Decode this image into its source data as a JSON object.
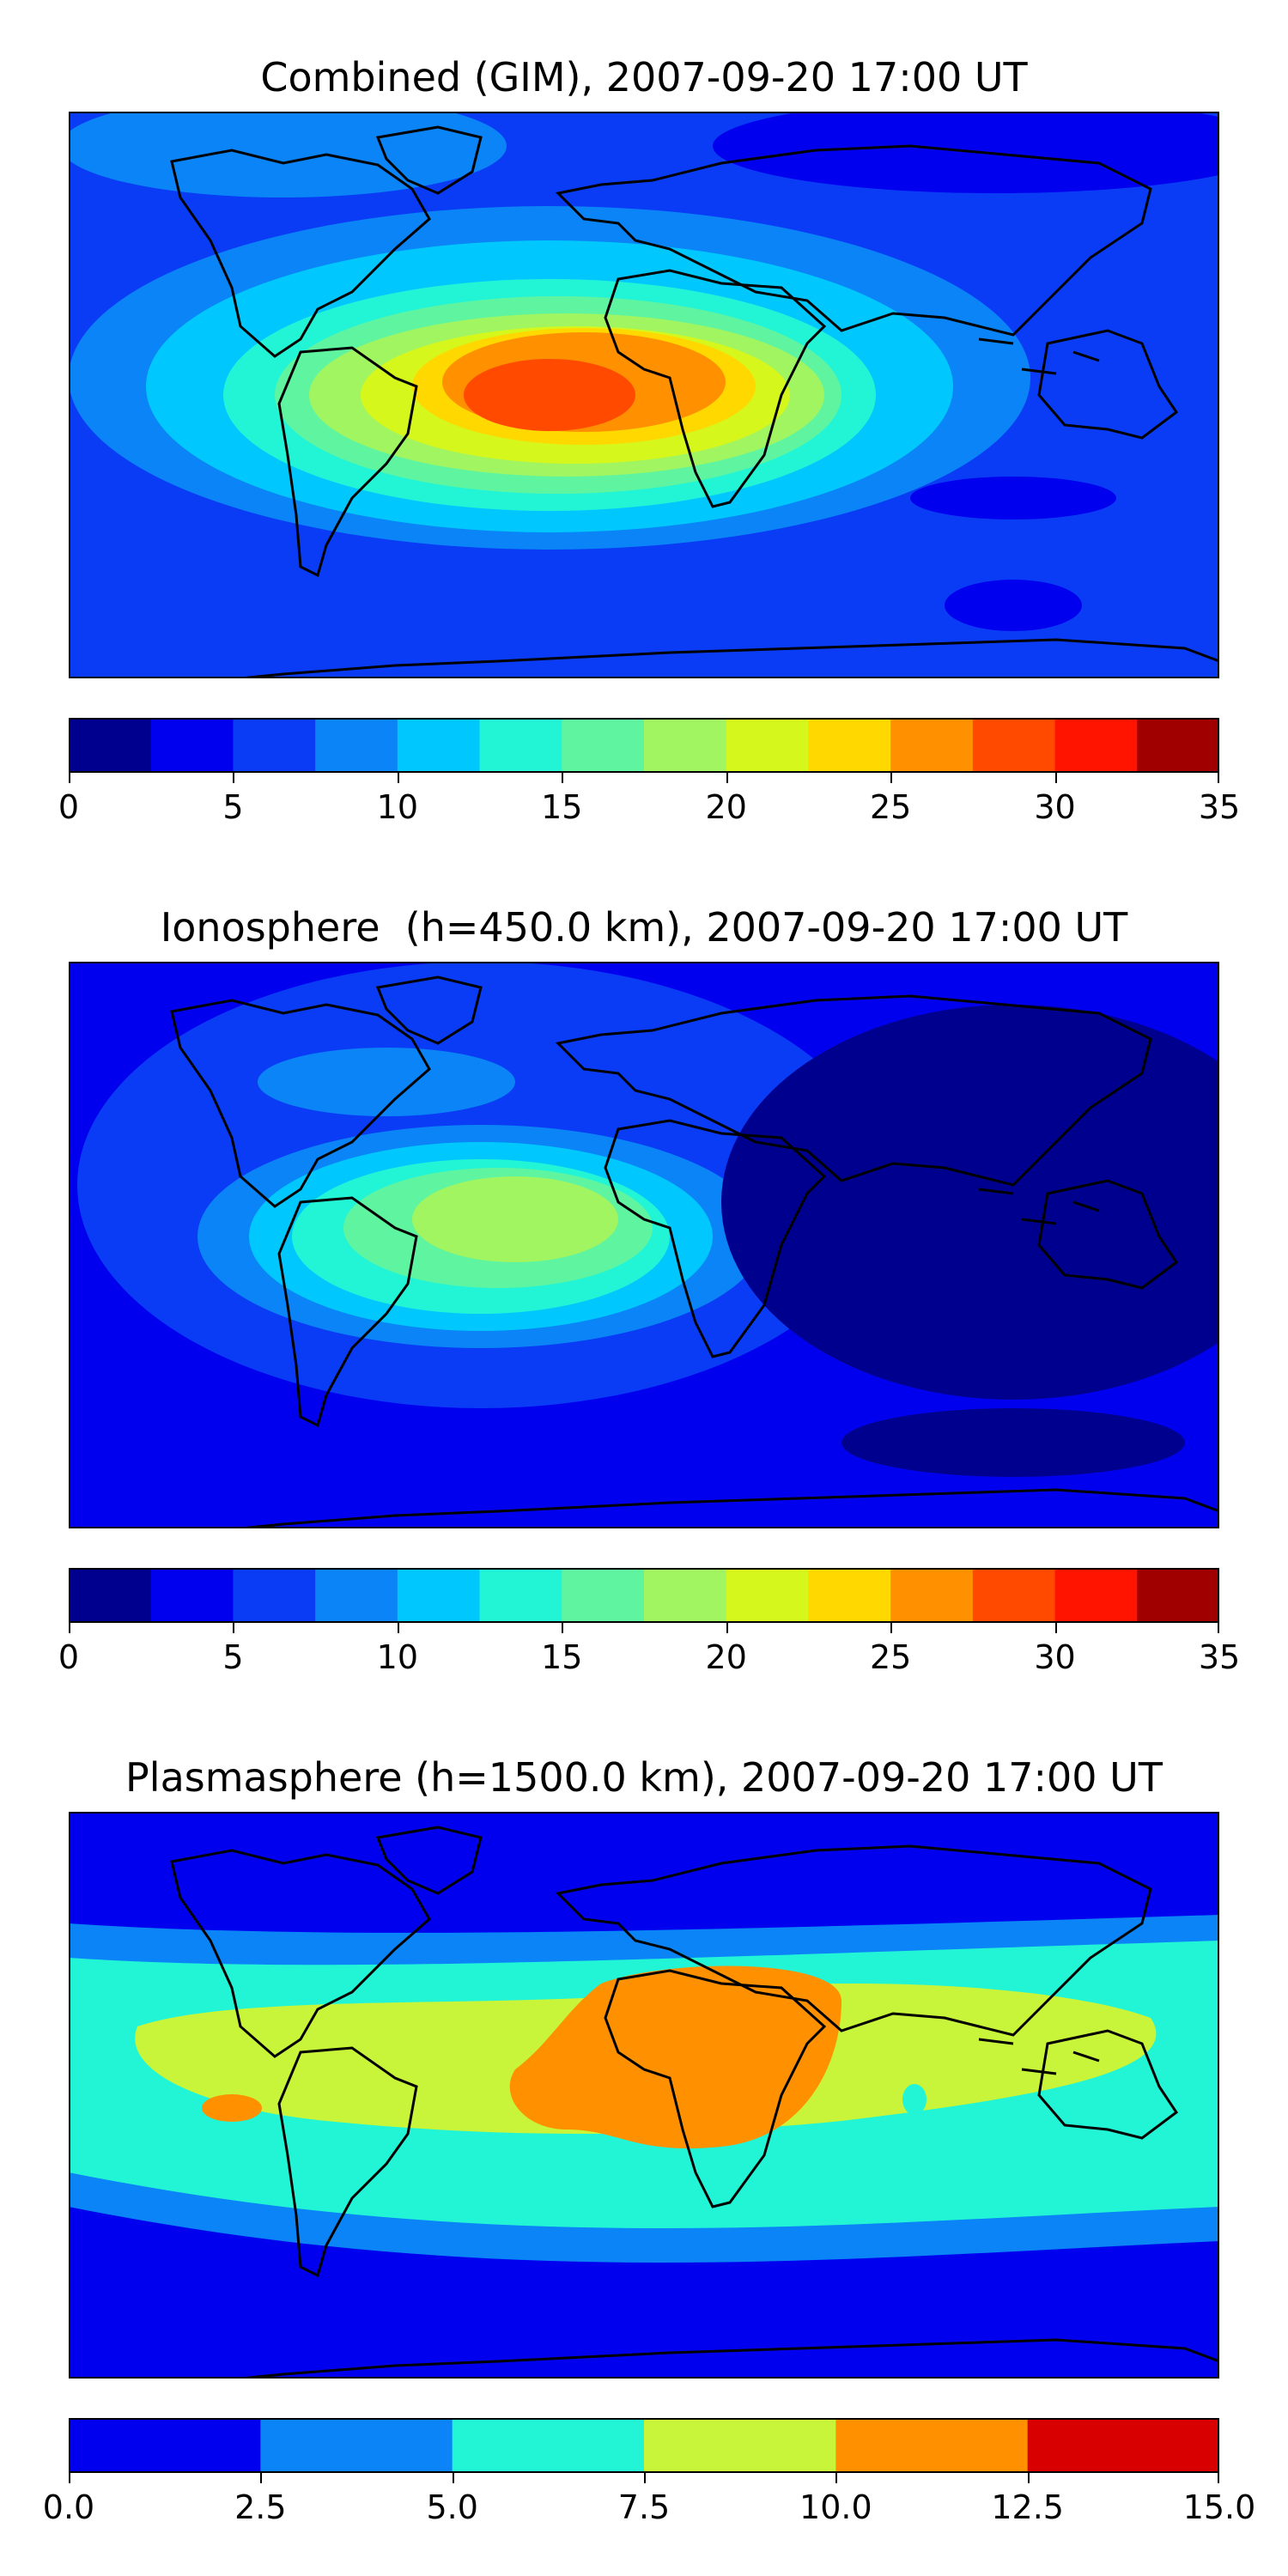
{
  "panels": [
    {
      "title": "Combined (GIM), 2007-09-20 17:00 UT",
      "colorbar": {
        "vmin": 0,
        "vmax": 35,
        "tick_labels": [
          "0",
          "5",
          "10",
          "15",
          "20",
          "25",
          "30",
          "35"
        ],
        "tick_values": [
          0,
          5,
          10,
          15,
          20,
          25,
          30,
          35
        ],
        "colors": [
          "#00008f",
          "#0000ef",
          "#0a3cf6",
          "#0a84f6",
          "#00c8ff",
          "#22f5d5",
          "#5ff5a0",
          "#a0f560",
          "#d6f71c",
          "#ffd800",
          "#ff9000",
          "#ff4a00",
          "#ff1400",
          "#a00000"
        ]
      }
    },
    {
      "title": "Ionosphere  (h=450.0 km), 2007-09-20 17:00 UT",
      "colorbar": {
        "vmin": 0,
        "vmax": 35,
        "tick_labels": [
          "0",
          "5",
          "10",
          "15",
          "20",
          "25",
          "30",
          "35"
        ],
        "tick_values": [
          0,
          5,
          10,
          15,
          20,
          25,
          30,
          35
        ],
        "colors": [
          "#00008f",
          "#0000ef",
          "#0a3cf6",
          "#0a84f6",
          "#00c8ff",
          "#22f5d5",
          "#5ff5a0",
          "#a0f560",
          "#d6f71c",
          "#ffd800",
          "#ff9000",
          "#ff4a00",
          "#ff1400",
          "#a00000"
        ]
      }
    },
    {
      "title": "Plasmasphere (h=1500.0 km), 2007-09-20 17:00 UT",
      "colorbar": {
        "vmin": 0,
        "vmax": 15,
        "tick_labels": [
          "0.0",
          "2.5",
          "5.0",
          "7.5",
          "10.0",
          "12.5",
          "15.0"
        ],
        "tick_values": [
          0,
          2.5,
          5,
          7.5,
          10,
          12.5,
          15
        ],
        "colors": [
          "#0000ef",
          "#0a84f6",
          "#22f5d5",
          "#c8f53a",
          "#ff9000",
          "#d80000"
        ]
      }
    }
  ]
}
